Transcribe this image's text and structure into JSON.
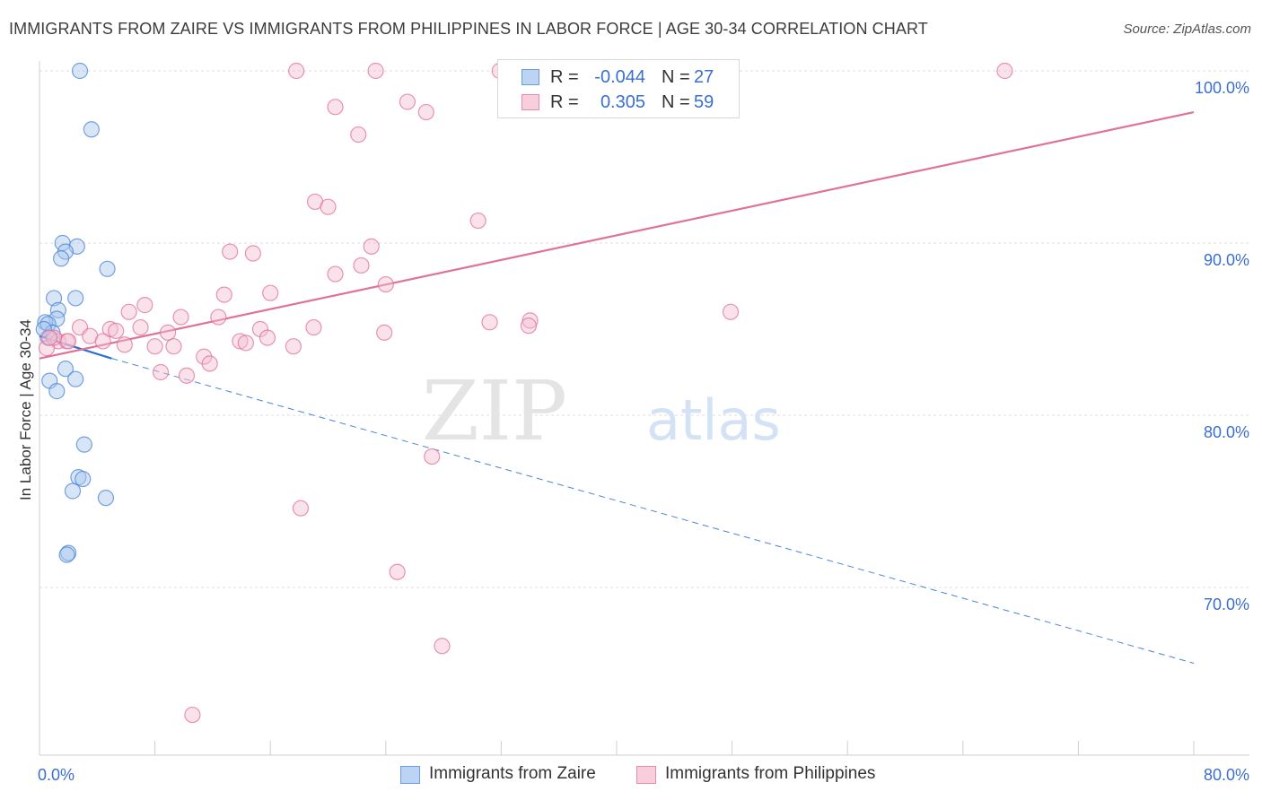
{
  "chart_data": {
    "type": "scatter",
    "title": "IMMIGRANTS FROM ZAIRE VS IMMIGRANTS FROM PHILIPPINES IN LABOR FORCE | AGE 30-34 CORRELATION CHART",
    "source": "Source: ZipAtlas.com",
    "ylabel": "In Labor Force | Age 30-34",
    "xlabel": "",
    "xlim": [
      0,
      80
    ],
    "ylim": [
      60.5,
      101.5
    ],
    "x_tick_labels": [
      "0.0%",
      "80.0%"
    ],
    "y_ticks": [
      {
        "value": 100,
        "label": "100.0%"
      },
      {
        "value": 90,
        "label": "90.0%"
      },
      {
        "value": 80,
        "label": "80.0%"
      },
      {
        "value": 70,
        "label": "70.0%"
      }
    ],
    "watermark": {
      "part1": "ZIP",
      "part2": "atlas"
    },
    "series": [
      {
        "name": "Immigrants from Zaire",
        "color": "#4a86d6",
        "fill": "#a8c6ee",
        "r_label": "R =",
        "r_value": "-0.044",
        "n_label": "N =",
        "n_value": "27",
        "trend": {
          "x0": 0.0,
          "y0": 84.6,
          "x1": 5.0,
          "y1": 83.3,
          "x_end": 80.0,
          "y_end": 65.6
        },
        "points": [
          [
            2.8,
            100.0
          ],
          [
            3.6,
            96.6
          ],
          [
            1.6,
            90.0
          ],
          [
            2.6,
            89.8
          ],
          [
            1.8,
            89.5
          ],
          [
            1.5,
            89.1
          ],
          [
            4.7,
            88.5
          ],
          [
            1.0,
            86.8
          ],
          [
            2.5,
            86.8
          ],
          [
            1.3,
            86.1
          ],
          [
            1.2,
            85.6
          ],
          [
            0.4,
            85.4
          ],
          [
            0.6,
            85.3
          ],
          [
            0.9,
            84.8
          ],
          [
            0.6,
            84.5
          ],
          [
            1.8,
            82.7
          ],
          [
            2.5,
            82.1
          ],
          [
            0.7,
            82.0
          ],
          [
            1.2,
            81.4
          ],
          [
            3.1,
            78.3
          ],
          [
            2.7,
            76.4
          ],
          [
            3.0,
            76.3
          ],
          [
            2.3,
            75.6
          ],
          [
            4.6,
            75.2
          ],
          [
            2.0,
            72.0
          ],
          [
            1.9,
            71.9
          ],
          [
            0.3,
            85.0
          ]
        ]
      },
      {
        "name": "Immigrants from Philippines",
        "color": "#e0719a",
        "fill": "#f5bfd2",
        "r_label": "R =",
        "r_value": "0.305",
        "n_label": "N =",
        "n_value": "59",
        "trend": {
          "x0": 0.0,
          "y0": 83.3,
          "x1": 80.0,
          "y1": 97.6
        },
        "points": [
          [
            17.8,
            100.0
          ],
          [
            23.3,
            100.0
          ],
          [
            31.9,
            100.0
          ],
          [
            66.9,
            100.0
          ],
          [
            25.5,
            98.2
          ],
          [
            20.5,
            97.9
          ],
          [
            26.8,
            97.6
          ],
          [
            22.1,
            96.3
          ],
          [
            19.1,
            92.4
          ],
          [
            20.0,
            92.1
          ],
          [
            30.4,
            91.3
          ],
          [
            23.0,
            89.8
          ],
          [
            13.2,
            89.5
          ],
          [
            14.8,
            89.4
          ],
          [
            22.3,
            88.7
          ],
          [
            20.5,
            88.2
          ],
          [
            24.0,
            87.6
          ],
          [
            12.8,
            87.0
          ],
          [
            16.0,
            87.1
          ],
          [
            7.3,
            86.4
          ],
          [
            6.2,
            86.0
          ],
          [
            47.9,
            86.0
          ],
          [
            9.8,
            85.7
          ],
          [
            12.4,
            85.7
          ],
          [
            31.2,
            85.4
          ],
          [
            34.0,
            85.5
          ],
          [
            33.9,
            85.2
          ],
          [
            2.8,
            85.1
          ],
          [
            4.9,
            85.0
          ],
          [
            7.0,
            85.1
          ],
          [
            15.3,
            85.0
          ],
          [
            19.0,
            85.1
          ],
          [
            5.3,
            84.9
          ],
          [
            8.9,
            84.8
          ],
          [
            3.5,
            84.6
          ],
          [
            23.9,
            84.8
          ],
          [
            4.4,
            84.3
          ],
          [
            1.3,
            84.3
          ],
          [
            1.9,
            84.3
          ],
          [
            5.9,
            84.1
          ],
          [
            8.0,
            84.0
          ],
          [
            9.3,
            84.0
          ],
          [
            13.9,
            84.3
          ],
          [
            14.3,
            84.2
          ],
          [
            15.8,
            84.5
          ],
          [
            17.6,
            84.0
          ],
          [
            11.4,
            83.4
          ],
          [
            11.8,
            83.0
          ],
          [
            8.4,
            82.5
          ],
          [
            10.2,
            82.3
          ],
          [
            0.5,
            83.9
          ],
          [
            1.0,
            84.5
          ],
          [
            27.2,
            77.6
          ],
          [
            18.1,
            74.6
          ],
          [
            24.8,
            70.9
          ],
          [
            27.9,
            66.6
          ],
          [
            10.6,
            62.6
          ],
          [
            0.7,
            84.5
          ],
          [
            2.0,
            84.3
          ]
        ]
      }
    ]
  }
}
